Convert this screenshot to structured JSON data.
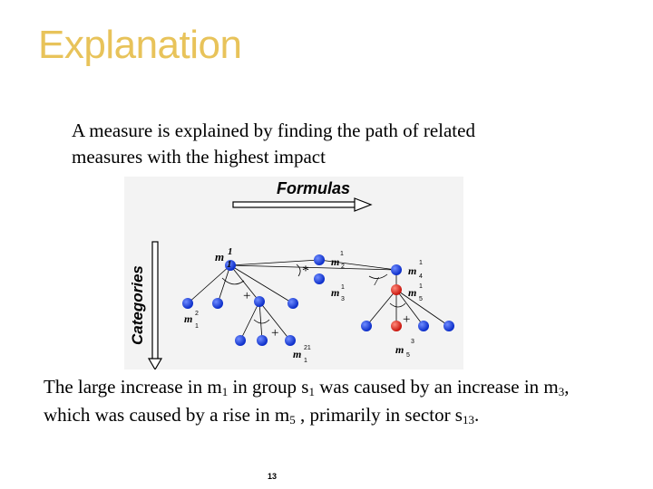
{
  "slide": {
    "title": "Explanation",
    "intro": "A measure is explained by finding the path of related measures with the highest impact",
    "conclusion": {
      "p1": "The large increase in m",
      "s1": "1",
      "p2": " in group s",
      "s2": "1",
      "p3": " was caused by an increase in m",
      "s3": "3",
      "p4": ", which was caused by a rise in m",
      "s4": "5",
      "p5": " , primarily in sector s",
      "s5": "13",
      "p6": "."
    },
    "page_number": "13"
  },
  "diagram": {
    "formulas_label": "Formulas",
    "categories_label": "Categories",
    "operators": {
      "times": "*",
      "divide": "/",
      "plus_left": "+",
      "plus_lower": "+",
      "plus_right": "+"
    },
    "nodes": {
      "m1": {
        "main": "m",
        "sub": "1",
        "sup": "1"
      },
      "m2": {
        "main": "m",
        "sub": "2",
        "sup": "1"
      },
      "m3": {
        "main": "m",
        "sub": "3",
        "sup": "1"
      },
      "m4": {
        "main": "m",
        "sub": "4",
        "sup": "1"
      },
      "m5": {
        "main": "m",
        "sub": "5",
        "sup": "1"
      },
      "m2_1": {
        "main": "m",
        "sub": "1",
        "sup": "2"
      },
      "m21_1": {
        "main": "m",
        "sub": "1",
        "sup": "21"
      },
      "m3_5": {
        "main": "m",
        "sub": "5",
        "sup": "3"
      }
    },
    "colors": {
      "node": "#1a3fd6",
      "highlight": "#e0261e",
      "title": "#e8c35a"
    }
  }
}
